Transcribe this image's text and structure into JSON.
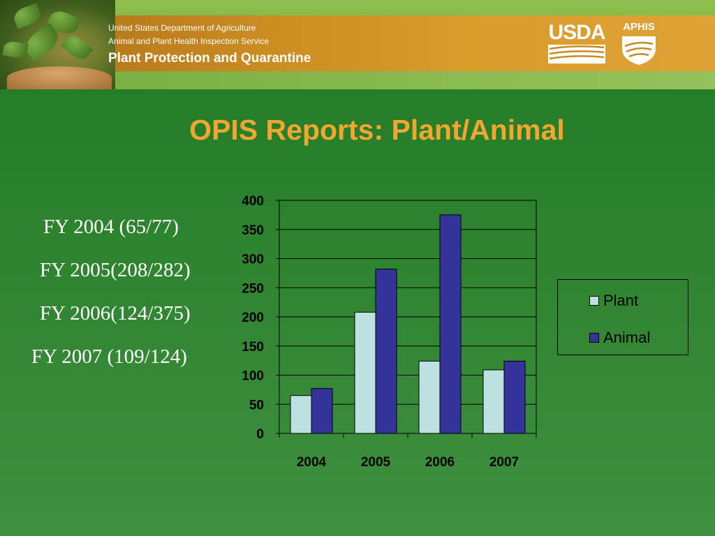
{
  "header": {
    "department": "United States Department of Agriculture",
    "service": "Animal and Plant Health Inspection Service",
    "program": "Plant Protection and Quarantine",
    "logo_usda": "USDA",
    "logo_aphis": "APHIS"
  },
  "slide": {
    "title": "OPIS Reports:  Plant/Animal",
    "fy_lines": [
      "FY 2004 (65/77)",
      "FY 2005(208/282)",
      "FY 2006(124/375)",
      "FY 2007 (109/124)"
    ]
  },
  "colors": {
    "plant": "#bde0e0",
    "animal": "#33339a",
    "title": "#f3a531"
  },
  "chart_data": {
    "type": "bar",
    "categories": [
      "2004",
      "2005",
      "2006",
      "2007"
    ],
    "series": [
      {
        "name": "Plant",
        "values": [
          65,
          208,
          124,
          109
        ]
      },
      {
        "name": "Animal",
        "values": [
          77,
          282,
          375,
          124
        ]
      }
    ],
    "y_ticks": [
      0,
      50,
      100,
      150,
      200,
      250,
      300,
      350,
      400
    ],
    "ylim": [
      0,
      400
    ],
    "grid": true,
    "legend": "right"
  }
}
